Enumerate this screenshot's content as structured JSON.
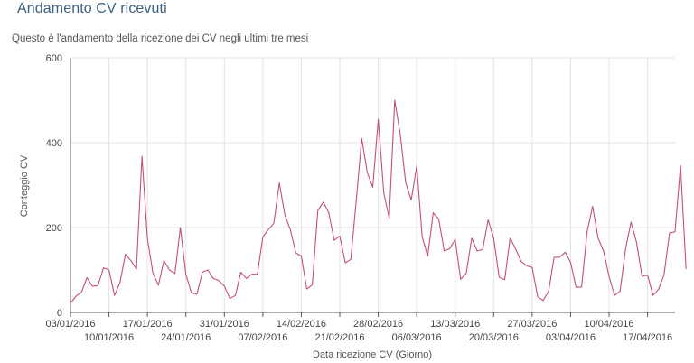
{
  "header": {
    "title": "Andamento CV ricevuti",
    "subtitle": "Questo è l'andamento della ricezione dei CV negli ultimi tre mesi"
  },
  "colors": {
    "line": "#c44e7a",
    "grid": "#e3e3e3",
    "axis": "#555555"
  },
  "chart_data": {
    "type": "line",
    "xlabel": "Data ricezione CV (Giorno)",
    "ylabel": "Conteggio CV",
    "ylim": [
      0,
      600
    ],
    "yticks": [
      0,
      200,
      400,
      600
    ],
    "grid": true,
    "x_start": "03/01/2016",
    "x_end": "22/04/2016",
    "xticks": [
      {
        "date": "03/01/2016",
        "row": 0
      },
      {
        "date": "10/01/2016",
        "row": 1
      },
      {
        "date": "17/01/2016",
        "row": 0
      },
      {
        "date": "24/01/2016",
        "row": 1
      },
      {
        "date": "31/01/2016",
        "row": 0
      },
      {
        "date": "07/02/2016",
        "row": 1
      },
      {
        "date": "14/02/2016",
        "row": 0
      },
      {
        "date": "21/02/2016",
        "row": 1
      },
      {
        "date": "28/02/2016",
        "row": 0
      },
      {
        "date": "06/03/2016",
        "row": 1
      },
      {
        "date": "13/03/2016",
        "row": 0
      },
      {
        "date": "20/03/2016",
        "row": 1
      },
      {
        "date": "27/03/2016",
        "row": 0
      },
      {
        "date": "03/04/2016",
        "row": 1
      },
      {
        "date": "10/04/2016",
        "row": 0
      },
      {
        "date": "17/04/2016",
        "row": 1
      }
    ],
    "series": [
      {
        "values": [
          22,
          38,
          48,
          82,
          62,
          63,
          105,
          100,
          40,
          70,
          137,
          122,
          102,
          368,
          175,
          93,
          64,
          122,
          100,
          92,
          200,
          90,
          46,
          43,
          95,
          100,
          80,
          75,
          62,
          33,
          40,
          95,
          80,
          90,
          90,
          178,
          195,
          210,
          305,
          230,
          195,
          140,
          133,
          55,
          65,
          240,
          260,
          235,
          170,
          180,
          117,
          125,
          265,
          410,
          330,
          295,
          455,
          282,
          222,
          500,
          420,
          305,
          265,
          345,
          178,
          132,
          235,
          220,
          145,
          150,
          172,
          78,
          92,
          175,
          145,
          148,
          218,
          175,
          83,
          77,
          175,
          150,
          120,
          110,
          106,
          37,
          28,
          50,
          130,
          130,
          142,
          118,
          59,
          60,
          190,
          250,
          175,
          145,
          85,
          40,
          50,
          150,
          213,
          165,
          85,
          88,
          40,
          55,
          88,
          187,
          190,
          347,
          102
        ]
      }
    ]
  }
}
